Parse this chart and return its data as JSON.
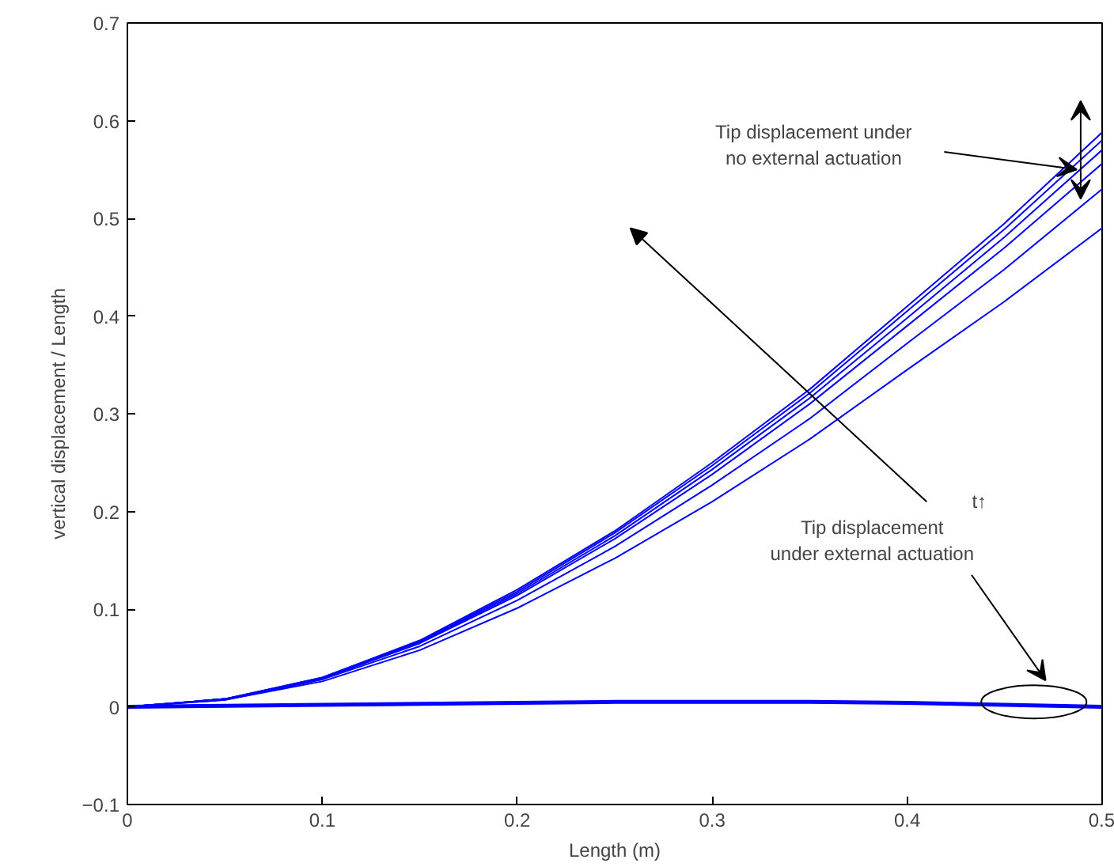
{
  "chart_data": {
    "type": "line",
    "xlabel": "Length (m)",
    "ylabel": "vertical displacement / Length",
    "x": [
      0,
      0.05,
      0.1,
      0.15,
      0.2,
      0.25,
      0.3,
      0.35,
      0.4,
      0.45,
      0.5
    ],
    "xlim": [
      0,
      0.5
    ],
    "ylim": [
      -0.1,
      0.7
    ],
    "xticks": [
      0,
      0.1,
      0.2,
      0.3,
      0.4,
      0.5
    ],
    "yticks": [
      -0.1,
      0,
      0.1,
      0.2,
      0.3,
      0.4,
      0.5,
      0.6,
      0.7
    ],
    "grid": false,
    "marker": "none",
    "line_style": "solid",
    "series": [
      {
        "color": "#0000ff",
        "values": [
          0,
          0.008,
          0.03,
          0.068,
          0.12,
          0.18,
          0.25,
          0.325,
          0.41,
          0.495,
          0.588
        ]
      },
      {
        "color": "#0000ff",
        "values": [
          0,
          0.008,
          0.03,
          0.067,
          0.118,
          0.178,
          0.247,
          0.321,
          0.405,
          0.489,
          0.58
        ]
      },
      {
        "color": "#0000ff",
        "values": [
          0,
          0.008,
          0.029,
          0.066,
          0.116,
          0.175,
          0.243,
          0.316,
          0.398,
          0.481,
          0.57
        ]
      },
      {
        "color": "#0000ff",
        "values": [
          0,
          0.008,
          0.029,
          0.065,
          0.114,
          0.172,
          0.238,
          0.31,
          0.39,
          0.47,
          0.556
        ]
      },
      {
        "color": "#0000ff",
        "values": [
          0,
          0.007,
          0.028,
          0.062,
          0.109,
          0.164,
          0.227,
          0.295,
          0.372,
          0.448,
          0.53
        ]
      },
      {
        "color": "#0000ff",
        "values": [
          0,
          0.007,
          0.026,
          0.058,
          0.101,
          0.152,
          0.21,
          0.274,
          0.345,
          0.415,
          0.49
        ]
      },
      {
        "color": "#0000ff",
        "values": [
          0,
          0.001,
          0.002,
          0.003,
          0.004,
          0.005,
          0.005,
          0.005,
          0.004,
          0.002,
          0
        ]
      }
    ],
    "annotations": [
      "Tip displacement under\nno external actuation",
      "t↑",
      "Tip displacement\nunder external actuation"
    ]
  }
}
